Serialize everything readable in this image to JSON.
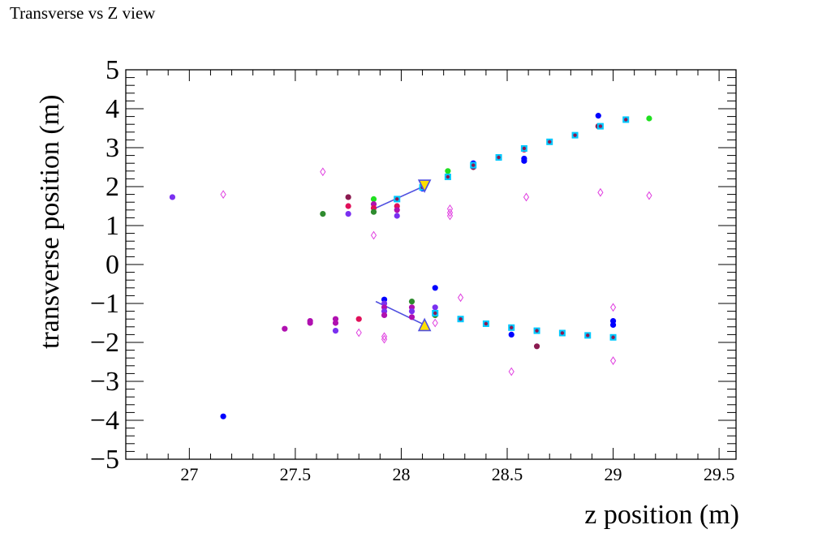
{
  "canvas_title": "Transverse vs Z view",
  "chart_data": {
    "type": "scatter",
    "title": "Transverse vs Z view",
    "xlabel": "z position (m)",
    "ylabel": "transverse position (m)",
    "xlim": [
      26.7,
      29.58
    ],
    "ylim": [
      -5,
      5
    ],
    "grid": false,
    "x_ticks": [
      "27",
      "27.5",
      "28",
      "28.5",
      "29",
      "29.5"
    ],
    "y_ticks": [
      "5",
      "4",
      "3",
      "2",
      "1",
      "0",
      "−1",
      "−2",
      "−3",
      "−4",
      "−5"
    ],
    "colors": {
      "blue": "#0000ff",
      "violet": "#7a30f0",
      "maroon": "#8b1a50",
      "crimson": "#e0105a",
      "green": "#20e020",
      "darkgreen": "#2e8b2e",
      "purple": "#b010b0",
      "black": "#000000",
      "cyan": "#00c8ff",
      "magenta": "#e040e0",
      "arrow": "#5050e0",
      "marker_fill": "#ffe000"
    },
    "series": [
      {
        "marker": "circle",
        "points": [
          {
            "x": 26.92,
            "y": 1.73,
            "c": "violet"
          },
          {
            "x": 27.16,
            "y": -3.9,
            "c": "blue"
          },
          {
            "x": 27.63,
            "y": 1.3,
            "c": "darkgreen"
          },
          {
            "x": 27.75,
            "y": 1.73,
            "c": "maroon"
          },
          {
            "x": 27.75,
            "y": 1.5,
            "c": "crimson"
          },
          {
            "x": 27.75,
            "y": 1.3,
            "c": "violet"
          },
          {
            "x": 27.87,
            "y": 1.68,
            "c": "green"
          },
          {
            "x": 27.87,
            "y": 1.55,
            "c": "purple"
          },
          {
            "x": 27.87,
            "y": 1.45,
            "c": "crimson"
          },
          {
            "x": 27.87,
            "y": 1.35,
            "c": "darkgreen"
          },
          {
            "x": 27.98,
            "y": 1.5,
            "c": "crimson"
          },
          {
            "x": 27.98,
            "y": 1.4,
            "c": "purple"
          },
          {
            "x": 27.98,
            "y": 1.25,
            "c": "violet"
          },
          {
            "x": 28.1,
            "y": 1.95,
            "c": "blue"
          },
          {
            "x": 28.22,
            "y": 2.4,
            "c": "green"
          },
          {
            "x": 28.34,
            "y": 2.6,
            "c": "blue"
          },
          {
            "x": 28.34,
            "y": 2.5,
            "c": "maroon"
          },
          {
            "x": 28.58,
            "y": 2.95,
            "c": "crimson"
          },
          {
            "x": 28.58,
            "y": 2.72,
            "c": "blue"
          },
          {
            "x": 28.58,
            "y": 2.66,
            "c": "blue"
          },
          {
            "x": 28.93,
            "y": 3.82,
            "c": "blue"
          },
          {
            "x": 28.93,
            "y": 3.55,
            "c": "maroon"
          },
          {
            "x": 29.17,
            "y": 3.75,
            "c": "green"
          },
          {
            "x": 27.45,
            "y": -1.65,
            "c": "purple"
          },
          {
            "x": 27.57,
            "y": -1.5,
            "c": "purple"
          },
          {
            "x": 27.57,
            "y": -1.45,
            "c": "purple"
          },
          {
            "x": 27.69,
            "y": -1.4,
            "c": "purple"
          },
          {
            "x": 27.69,
            "y": -1.5,
            "c": "purple"
          },
          {
            "x": 27.69,
            "y": -1.7,
            "c": "violet"
          },
          {
            "x": 27.8,
            "y": -1.4,
            "c": "crimson"
          },
          {
            "x": 27.92,
            "y": -0.9,
            "c": "blue"
          },
          {
            "x": 27.92,
            "y": -1.0,
            "c": "violet"
          },
          {
            "x": 27.92,
            "y": -1.1,
            "c": "purple"
          },
          {
            "x": 27.92,
            "y": -1.2,
            "c": "violet"
          },
          {
            "x": 27.92,
            "y": -1.3,
            "c": "purple"
          },
          {
            "x": 28.05,
            "y": -0.95,
            "c": "darkgreen"
          },
          {
            "x": 28.05,
            "y": -1.1,
            "c": "purple"
          },
          {
            "x": 28.05,
            "y": -1.2,
            "c": "violet"
          },
          {
            "x": 28.05,
            "y": -1.35,
            "c": "purple"
          },
          {
            "x": 28.16,
            "y": -0.6,
            "c": "blue"
          },
          {
            "x": 28.16,
            "y": -1.1,
            "c": "violet"
          },
          {
            "x": 28.16,
            "y": -1.3,
            "c": "darkgreen"
          },
          {
            "x": 28.52,
            "y": -1.8,
            "c": "blue"
          },
          {
            "x": 28.64,
            "y": -2.1,
            "c": "maroon"
          },
          {
            "x": 29.0,
            "y": -1.45,
            "c": "blue"
          },
          {
            "x": 29.0,
            "y": -1.55,
            "c": "blue"
          }
        ]
      },
      {
        "marker": "square",
        "points": [
          {
            "x": 27.98,
            "y": 1.68
          },
          {
            "x": 28.1,
            "y": 1.98
          },
          {
            "x": 28.22,
            "y": 2.25
          },
          {
            "x": 28.34,
            "y": 2.55
          },
          {
            "x": 28.46,
            "y": 2.75
          },
          {
            "x": 28.58,
            "y": 2.98
          },
          {
            "x": 28.7,
            "y": 3.15
          },
          {
            "x": 28.82,
            "y": 3.32
          },
          {
            "x": 28.94,
            "y": 3.55
          },
          {
            "x": 29.06,
            "y": 3.72
          },
          {
            "x": 28.16,
            "y": -1.25
          },
          {
            "x": 28.28,
            "y": -1.4
          },
          {
            "x": 28.4,
            "y": -1.52
          },
          {
            "x": 28.52,
            "y": -1.62
          },
          {
            "x": 28.64,
            "y": -1.7
          },
          {
            "x": 28.76,
            "y": -1.76
          },
          {
            "x": 28.88,
            "y": -1.82
          },
          {
            "x": 29.0,
            "y": -1.87
          }
        ]
      },
      {
        "marker": "diamond",
        "points": [
          {
            "x": 27.16,
            "y": 1.8
          },
          {
            "x": 27.63,
            "y": 2.38
          },
          {
            "x": 27.87,
            "y": 0.75
          },
          {
            "x": 28.23,
            "y": 1.43
          },
          {
            "x": 28.23,
            "y": 1.33
          },
          {
            "x": 28.23,
            "y": 1.25
          },
          {
            "x": 28.59,
            "y": 1.73
          },
          {
            "x": 28.94,
            "y": 1.85
          },
          {
            "x": 29.17,
            "y": 1.77
          },
          {
            "x": 27.8,
            "y": -1.75
          },
          {
            "x": 27.92,
            "y": -1.85
          },
          {
            "x": 27.92,
            "y": -1.92
          },
          {
            "x": 28.16,
            "y": -1.5
          },
          {
            "x": 28.28,
            "y": -0.85
          },
          {
            "x": 28.52,
            "y": -2.75
          },
          {
            "x": 29.0,
            "y": -1.1
          },
          {
            "x": 29.0,
            "y": -2.47
          }
        ]
      }
    ],
    "vertices": [
      {
        "marker": "triangle-down",
        "x": 28.11,
        "y": 2.02
      },
      {
        "marker": "triangle-up",
        "x": 28.11,
        "y": -1.55
      }
    ],
    "arrows": [
      {
        "x1": 27.88,
        "y1": 1.45,
        "x2": 28.11,
        "y2": 2.02
      },
      {
        "x1": 27.88,
        "y1": -0.95,
        "x2": 28.11,
        "y2": -1.55
      }
    ]
  }
}
